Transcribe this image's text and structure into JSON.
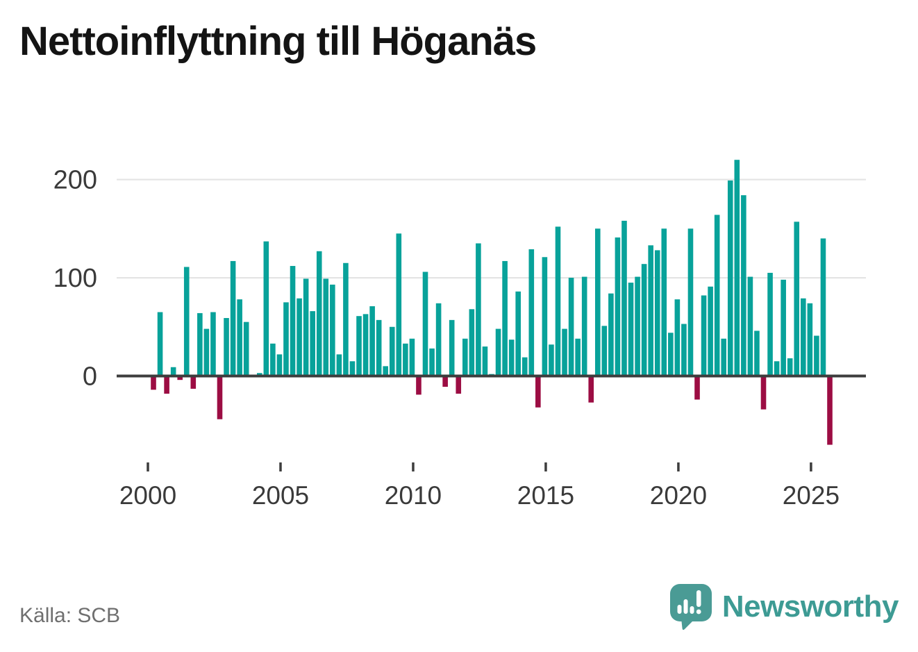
{
  "title": "Nettoinflyttning till Höganäs",
  "source": "Källa: SCB",
  "branding": {
    "logo_text": "Newsworthy",
    "logo_icon": "newsworthy-speech-bubble-bar-chart-icon"
  },
  "colors": {
    "positive_bar": "#08a29a",
    "negative_bar": "#9c0d43",
    "gridline": "#e4e4e4",
    "zero_line": "#3d3d3d",
    "axis_text": "#3a3a3a",
    "title_text": "#141414",
    "source_text": "#6f6f6f",
    "brand_teal": "#3d9b94",
    "logo_bubble": "#4a9b95",
    "background": "#ffffff"
  },
  "chart_data": {
    "type": "bar",
    "title": "Nettoinflyttning till Höganäs",
    "xlabel": "",
    "ylabel": "",
    "grid": "horizontal",
    "legend": "none",
    "ylim": [
      -80,
      235
    ],
    "yticks": [
      0,
      100,
      200
    ],
    "gridline_yticks": [
      100,
      200
    ],
    "xticks": [
      2000,
      2005,
      2010,
      2015,
      2020,
      2025
    ],
    "frequency": "quarterly",
    "quarters": [
      "2000K1",
      "2000K2",
      "2000K3",
      "2000K4",
      "2001K1",
      "2001K2",
      "2001K3",
      "2001K4",
      "2002K1",
      "2002K2",
      "2002K3",
      "2002K4",
      "2003K1",
      "2003K2",
      "2003K3",
      "2003K4",
      "2004K1",
      "2004K2",
      "2004K3",
      "2004K4",
      "2005K1",
      "2005K2",
      "2005K3",
      "2005K4",
      "2006K1",
      "2006K2",
      "2006K3",
      "2006K4",
      "2007K1",
      "2007K2",
      "2007K3",
      "2007K4",
      "2008K1",
      "2008K2",
      "2008K3",
      "2008K4",
      "2009K1",
      "2009K2",
      "2009K3",
      "2009K4",
      "2010K1",
      "2010K2",
      "2010K3",
      "2010K4",
      "2011K1",
      "2011K2",
      "2011K3",
      "2011K4",
      "2012K1",
      "2012K2",
      "2012K3",
      "2012K4",
      "2013K1",
      "2013K2",
      "2013K3",
      "2013K4",
      "2014K1",
      "2014K2",
      "2014K3",
      "2014K4",
      "2015K1",
      "2015K2",
      "2015K3",
      "2015K4",
      "2016K1",
      "2016K2",
      "2016K3",
      "2016K4",
      "2017K1",
      "2017K2",
      "2017K3",
      "2017K4",
      "2018K1",
      "2018K2",
      "2018K3",
      "2018K4",
      "2019K1",
      "2019K2",
      "2019K3",
      "2019K4",
      "2020K1",
      "2020K2",
      "2020K3",
      "2020K4",
      "2021K1",
      "2021K2",
      "2021K3",
      "2021K4",
      "2022K1",
      "2022K2",
      "2022K3",
      "2022K4",
      "2023K1",
      "2023K2",
      "2023K3",
      "2023K4",
      "2024K1",
      "2024K2",
      "2024K3",
      "2024K4",
      "2025K1",
      "2025K2",
      "2025K3"
    ],
    "values": [
      -14,
      65,
      -18,
      9,
      -4,
      111,
      -13,
      64,
      48,
      65,
      -44,
      59,
      117,
      78,
      55,
      0,
      3,
      137,
      33,
      22,
      75,
      112,
      79,
      99,
      66,
      127,
      99,
      93,
      22,
      115,
      15,
      61,
      63,
      71,
      57,
      10,
      50,
      145,
      33,
      38,
      -19,
      106,
      28,
      74,
      -11,
      57,
      -18,
      38,
      68,
      135,
      30,
      2,
      48,
      117,
      37,
      86,
      19,
      129,
      -32,
      121,
      32,
      152,
      48,
      100,
      38,
      101,
      -27,
      150,
      51,
      84,
      141,
      158,
      95,
      101,
      114,
      133,
      128,
      150,
      44,
      78,
      53,
      150,
      -24,
      82,
      91,
      164,
      38,
      199,
      220,
      184,
      101,
      46,
      -34,
      105,
      15,
      98,
      18,
      157,
      79,
      74,
      41,
      140,
      -70
    ]
  }
}
